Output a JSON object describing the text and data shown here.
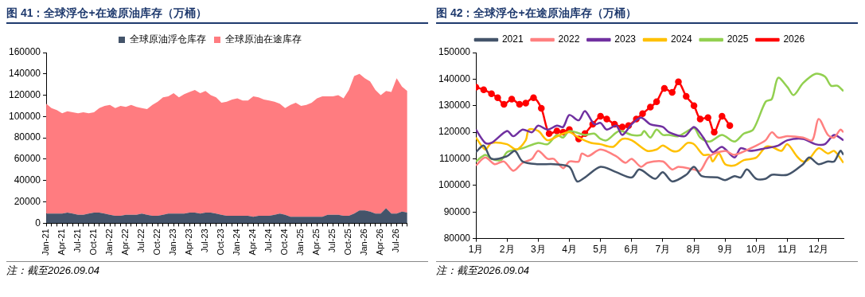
{
  "chart_data": [
    {
      "type": "area",
      "title": "图 41：全球浮仓+在途原油库存（万桶）",
      "stacked": true,
      "legend": "top",
      "grid": false,
      "categories": [
        "Jan-21",
        null,
        null,
        "Apr-21",
        null,
        null,
        "Jul-21",
        null,
        null,
        "Oct-21",
        null,
        null,
        "Jan-22",
        null,
        null,
        "Apr-22",
        null,
        null,
        "Jul-22",
        null,
        null,
        "Oct-22",
        null,
        null,
        "Jan-23",
        null,
        null,
        "Apr-23",
        null,
        null,
        "Jul-23",
        null,
        null,
        "Oct-23",
        null,
        null,
        "Jan-24",
        null,
        null,
        "Apr-24",
        null,
        null,
        "Jul-24",
        null,
        null,
        "Oct-24",
        null,
        null,
        "Jan-25",
        null,
        null,
        "Apr-25",
        null,
        null,
        "Jul-25",
        null,
        null,
        "Oct-25",
        null,
        null,
        "Jan-26",
        null,
        null,
        "Apr-26",
        null,
        null,
        "Jul-26",
        null,
        null
      ],
      "ylim": [
        0,
        160000
      ],
      "yticks": [
        0,
        20000,
        40000,
        60000,
        80000,
        100000,
        120000,
        140000,
        160000
      ],
      "series": [
        {
          "name": "全球原油浮仓库存",
          "color": "#44546a",
          "values": [
            9000,
            9000,
            9000,
            9000,
            10000,
            9000,
            8000,
            8000,
            9000,
            10000,
            10000,
            9000,
            8000,
            7000,
            7000,
            8000,
            8000,
            8000,
            9000,
            8000,
            7000,
            7000,
            8000,
            9000,
            9000,
            9000,
            9000,
            10000,
            10000,
            9000,
            10000,
            10000,
            9000,
            8000,
            7000,
            7000,
            7000,
            7000,
            7000,
            6000,
            7000,
            7000,
            7000,
            8000,
            9000,
            8000,
            6000,
            6000,
            6000,
            6000,
            6000,
            6000,
            6000,
            8000,
            8000,
            8000,
            7000,
            7000,
            9000,
            12000,
            12000,
            11000,
            9000,
            9000,
            14000,
            9000,
            9000,
            11000,
            10000
          ]
        },
        {
          "name": "全球原油在途库存",
          "color": "#ff7c80",
          "values": [
            103000,
            99000,
            97000,
            94000,
            95000,
            95000,
            95000,
            96000,
            94000,
            94000,
            98000,
            101000,
            103000,
            101000,
            103000,
            101000,
            103000,
            101000,
            99000,
            99000,
            104000,
            107000,
            110000,
            110000,
            113000,
            109000,
            112000,
            113000,
            115000,
            113000,
            114000,
            110000,
            109000,
            105000,
            107000,
            109000,
            110000,
            108000,
            108000,
            113000,
            111000,
            109000,
            108000,
            106000,
            103000,
            100000,
            105000,
            107000,
            104000,
            105000,
            107000,
            111000,
            113000,
            111000,
            111000,
            112000,
            110000,
            118000,
            129000,
            128000,
            124000,
            122000,
            116000,
            111000,
            110000,
            114000,
            127000,
            117000,
            114000
          ]
        }
      ],
      "annotations": [
        "注：截至2026.09.04"
      ]
    },
    {
      "type": "line",
      "title": "图 42：全球浮仓+在途原油库存（万桶）",
      "legend": "top",
      "grid": false,
      "marker": "none",
      "xlim": [
        1,
        12.8
      ],
      "xticks": [
        {
          "value": 1,
          "label": "1月"
        },
        {
          "value": 2,
          "label": "2月"
        },
        {
          "value": 3,
          "label": "3月"
        },
        {
          "value": 4,
          "label": "4月"
        },
        {
          "value": 5,
          "label": "5月"
        },
        {
          "value": 6,
          "label": "6月"
        },
        {
          "value": 7,
          "label": "7月"
        },
        {
          "value": 8,
          "label": "8月"
        },
        {
          "value": 9,
          "label": "9月"
        },
        {
          "value": 10,
          "label": "10月"
        },
        {
          "value": 11,
          "label": "11月"
        },
        {
          "value": 12,
          "label": "12月"
        }
      ],
      "ylim": [
        80000,
        150000
      ],
      "yticks": [
        80000,
        90000,
        100000,
        110000,
        120000,
        130000,
        140000,
        150000
      ],
      "series": [
        {
          "name": "2021",
          "color": "#44546a",
          "x": [
            1,
            1.25,
            1.5,
            2,
            2.25,
            2.5,
            3,
            3.5,
            4,
            4.25,
            4.5,
            5,
            5.5,
            6,
            6.25,
            6.75,
            7,
            7.3,
            7.75,
            8,
            8.25,
            8.75,
            9,
            9.3,
            9.5,
            9.7,
            10,
            10.3,
            10.5,
            11,
            11.5,
            11.7,
            12,
            12.3,
            12.5,
            12.7,
            12.8
          ],
          "values": [
            112500,
            115000,
            110000,
            111000,
            113000,
            109000,
            108000,
            108000,
            107000,
            101500,
            103000,
            107000,
            105000,
            103000,
            106000,
            102500,
            105000,
            101500,
            104000,
            107000,
            103500,
            103000,
            102000,
            103500,
            103000,
            106000,
            102500,
            102500,
            104000,
            104000,
            108000,
            110500,
            108000,
            109000,
            109000,
            113000,
            111500
          ]
        },
        {
          "name": "2022",
          "color": "#ff8080",
          "x": [
            1,
            1.3,
            1.6,
            1.9,
            2.2,
            2.5,
            2.8,
            3,
            3.3,
            3.5,
            3.8,
            4,
            4.3,
            4.4,
            4.6,
            5,
            5.5,
            5.8,
            6,
            6.3,
            6.5,
            7,
            7.3,
            7.5,
            8,
            8.2,
            8.5,
            9,
            9.3,
            10,
            10.3,
            10.5,
            10.7,
            11,
            11.5,
            11.8,
            12,
            12.3,
            12.5,
            12.7,
            12.8
          ],
          "values": [
            107500,
            110500,
            108000,
            109000,
            105500,
            108500,
            110000,
            113000,
            110000,
            110000,
            106500,
            109000,
            109000,
            112000,
            111000,
            113500,
            111000,
            108500,
            110000,
            107000,
            108500,
            109000,
            106000,
            107000,
            106000,
            105500,
            111000,
            113000,
            111500,
            115000,
            117000,
            120000,
            118000,
            118500,
            118000,
            117000,
            125000,
            119000,
            118000,
            121000,
            120000
          ]
        },
        {
          "name": "2023",
          "color": "#7030a0",
          "x": [
            1,
            1.3,
            1.5,
            2,
            2.2,
            2.5,
            2.8,
            3,
            3.3,
            3.6,
            3.8,
            4,
            4.3,
            4.5,
            4.8,
            5,
            5.2,
            5.5,
            5.7,
            6,
            6.3,
            6.6,
            7,
            7.2,
            7.7,
            8,
            8.3,
            8.6,
            8.9,
            9.3,
            9.5,
            9.8,
            10.3,
            10.7,
            11,
            11.5,
            11.9,
            12.2,
            12.5,
            12.8
          ],
          "values": [
            121000,
            116000,
            116000,
            120500,
            118500,
            121000,
            120000,
            122500,
            121000,
            122500,
            122000,
            126500,
            124500,
            128000,
            123000,
            123500,
            121000,
            122500,
            119000,
            123000,
            125500,
            123000,
            122000,
            120000,
            118500,
            122000,
            118000,
            112500,
            114500,
            110500,
            114000,
            113000,
            114000,
            115000,
            117000,
            117500,
            115500,
            115500,
            119000,
            117000
          ]
        },
        {
          "name": "2024",
          "color": "#ffc000",
          "x": [
            1,
            1.3,
            1.5,
            2,
            2.3,
            2.6,
            2.7,
            3,
            3.3,
            3.7,
            4,
            4.3,
            4.7,
            5,
            5.4,
            5.7,
            6,
            6.5,
            6.8,
            7,
            7.3,
            7.5,
            7.8,
            8,
            8.3,
            8.5,
            8.6,
            8.8,
            9,
            9.3,
            9.6,
            10,
            10.3,
            10.5,
            10.8,
            11,
            11.3,
            11.5,
            11.7,
            12,
            12.3,
            12.5,
            12.8
          ],
          "values": [
            118000,
            113500,
            116000,
            115500,
            113500,
            117000,
            121000,
            120500,
            117000,
            119000,
            120000,
            118000,
            116000,
            115500,
            114500,
            117500,
            117000,
            113000,
            113500,
            115000,
            113000,
            113000,
            116000,
            115500,
            111500,
            111500,
            109000,
            112000,
            108000,
            107500,
            109500,
            110500,
            114500,
            114500,
            113000,
            115500,
            111000,
            109000,
            110000,
            114000,
            112000,
            113000,
            108500
          ]
        },
        {
          "name": "2025",
          "color": "#92d050",
          "x": [
            1,
            1.3,
            1.5,
            1.8,
            2,
            2.3,
            2.5,
            3,
            3.3,
            3.6,
            3.8,
            4,
            4.5,
            4.8,
            5,
            5.2,
            5.6,
            6,
            6.3,
            6.4,
            6.6,
            6.8,
            7,
            7.2,
            7.5,
            8,
            8.2,
            8.5,
            8.9,
            9.3,
            9.6,
            9.9,
            10.3,
            10.5,
            10.7,
            11,
            11.2,
            11.5,
            11.9,
            12.2,
            12.4,
            12.6,
            12.8
          ],
          "values": [
            109000,
            111500,
            110000,
            109500,
            112500,
            113500,
            114000,
            116000,
            115500,
            119000,
            118000,
            120500,
            119000,
            119500,
            117500,
            117000,
            120500,
            119000,
            119000,
            120500,
            118000,
            121000,
            119000,
            119000,
            118500,
            121500,
            118000,
            116500,
            119000,
            116500,
            119500,
            121000,
            131500,
            132500,
            140500,
            137000,
            134000,
            138500,
            142000,
            141000,
            137500,
            137500,
            135500
          ]
        },
        {
          "name": "2026",
          "color": "#ff0000",
          "marker": "circle",
          "x": [
            1,
            1.25,
            1.5,
            1.7,
            1.9,
            2.15,
            2.4,
            2.6,
            2.85,
            3.1,
            3.35,
            3.6,
            3.8,
            4,
            4.3,
            4.5,
            4.75,
            5,
            5.2,
            5.45,
            5.7,
            5.9,
            6.15,
            6.35,
            6.6,
            6.8,
            7.05,
            7.3,
            7.5,
            7.75,
            8,
            8.2,
            8.45,
            8.65,
            8.9,
            9.15
          ],
          "values": [
            137000,
            136000,
            134500,
            133000,
            130500,
            132500,
            130500,
            131000,
            133000,
            129000,
            119500,
            120500,
            120000,
            121000,
            117500,
            119500,
            123000,
            126000,
            125000,
            123000,
            122000,
            122500,
            125000,
            127000,
            129500,
            131500,
            136500,
            135000,
            139000,
            133500,
            130000,
            125000,
            125500,
            120000,
            126000,
            122500
          ]
        }
      ],
      "annotations": [
        "注：截至2026.09.04"
      ]
    }
  ]
}
